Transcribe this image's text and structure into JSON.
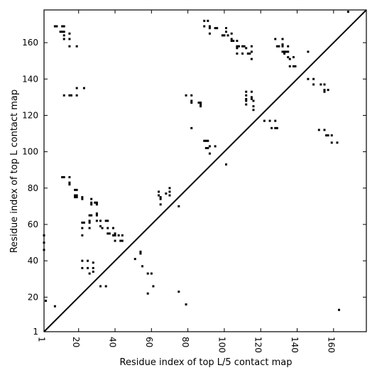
{
  "chart_data": {
    "type": "scatter",
    "title": "",
    "xlabel": "Residue index of top L/5 contact map",
    "ylabel": "Residue index of top L contact map",
    "xlim": [
      1,
      178
    ],
    "ylim": [
      1,
      178
    ],
    "x_ticks": [
      1,
      20,
      40,
      60,
      80,
      100,
      120,
      140,
      160
    ],
    "y_ticks": [
      1,
      20,
      40,
      60,
      80,
      100,
      120,
      140,
      160
    ],
    "diagonal": true,
    "grid": false,
    "legend": "none",
    "marker_color": "#000000",
    "series": [
      {
        "values": [
          [
            7,
            169
          ],
          [
            8,
            169
          ],
          [
            11,
            169
          ],
          [
            12,
            169
          ],
          [
            10,
            166
          ],
          [
            11,
            166
          ],
          [
            12,
            166
          ],
          [
            12,
            164
          ],
          [
            12,
            162
          ],
          [
            15,
            165
          ],
          [
            15,
            162
          ],
          [
            15,
            158
          ],
          [
            19,
            158
          ],
          [
            12,
            131
          ],
          [
            15,
            131
          ],
          [
            16,
            131
          ],
          [
            19,
            131
          ],
          [
            19,
            135
          ],
          [
            23,
            135
          ],
          [
            11,
            86
          ],
          [
            12,
            86
          ],
          [
            15,
            86
          ],
          [
            15,
            83
          ],
          [
            15,
            82
          ],
          [
            18,
            79
          ],
          [
            19,
            79
          ],
          [
            18,
            76
          ],
          [
            19,
            76
          ],
          [
            18,
            75
          ],
          [
            19,
            75
          ],
          [
            22,
            75
          ],
          [
            22,
            74
          ],
          [
            22,
            61
          ],
          [
            23,
            61
          ],
          [
            22,
            58
          ],
          [
            22,
            54
          ],
          [
            26,
            65
          ],
          [
            27,
            65
          ],
          [
            26,
            62
          ],
          [
            26,
            61
          ],
          [
            26,
            58
          ],
          [
            27,
            74
          ],
          [
            27,
            72
          ],
          [
            27,
            71
          ],
          [
            29,
            72
          ],
          [
            30,
            72
          ],
          [
            30,
            71
          ],
          [
            30,
            66
          ],
          [
            30,
            65
          ],
          [
            30,
            62
          ],
          [
            32,
            62
          ],
          [
            32,
            59
          ],
          [
            33,
            58
          ],
          [
            35,
            62
          ],
          [
            36,
            62
          ],
          [
            36,
            58
          ],
          [
            36,
            55
          ],
          [
            37,
            55
          ],
          [
            39,
            58
          ],
          [
            40,
            55
          ],
          [
            40,
            54
          ],
          [
            39,
            54
          ],
          [
            42,
            54
          ],
          [
            44,
            54
          ],
          [
            40,
            51
          ],
          [
            43,
            51
          ],
          [
            44,
            51
          ],
          [
            1,
            54
          ],
          [
            1,
            50
          ],
          [
            1,
            46
          ],
          [
            2,
            18
          ],
          [
            7,
            15
          ],
          [
            22,
            40
          ],
          [
            25,
            40
          ],
          [
            28,
            39
          ],
          [
            22,
            36
          ],
          [
            25,
            36
          ],
          [
            28,
            36
          ],
          [
            26,
            33
          ],
          [
            28,
            34
          ],
          [
            32,
            26
          ],
          [
            35,
            26
          ],
          [
            51,
            41
          ],
          [
            54,
            45
          ],
          [
            54,
            44
          ],
          [
            55,
            37
          ],
          [
            58,
            33
          ],
          [
            60,
            33
          ],
          [
            58,
            22
          ],
          [
            61,
            26
          ],
          [
            64,
            78
          ],
          [
            64,
            76
          ],
          [
            65,
            75
          ],
          [
            65,
            74
          ],
          [
            65,
            71
          ],
          [
            68,
            77
          ],
          [
            70,
            78
          ],
          [
            70,
            76
          ],
          [
            70,
            80
          ],
          [
            75,
            70
          ],
          [
            75,
            23
          ],
          [
            79,
            16
          ],
          [
            79,
            131
          ],
          [
            82,
            131
          ],
          [
            82,
            128
          ],
          [
            82,
            127
          ],
          [
            86,
            127
          ],
          [
            87,
            127
          ],
          [
            87,
            126
          ],
          [
            87,
            125
          ],
          [
            82,
            113
          ],
          [
            89,
            172
          ],
          [
            91,
            172
          ],
          [
            92,
            169
          ],
          [
            89,
            169
          ],
          [
            92,
            168
          ],
          [
            92,
            165
          ],
          [
            95,
            168
          ],
          [
            96,
            168
          ],
          [
            99,
            164
          ],
          [
            100,
            164
          ],
          [
            101,
            166
          ],
          [
            101,
            168
          ],
          [
            102,
            164
          ],
          [
            104,
            165
          ],
          [
            104,
            162
          ],
          [
            104,
            161
          ],
          [
            105,
            161
          ],
          [
            107,
            161
          ],
          [
            107,
            158
          ],
          [
            108,
            158
          ],
          [
            107,
            157
          ],
          [
            107,
            154
          ],
          [
            110,
            158
          ],
          [
            110,
            154
          ],
          [
            111,
            158
          ],
          [
            112,
            157
          ],
          [
            113,
            154
          ],
          [
            114,
            154
          ],
          [
            115,
            158
          ],
          [
            115,
            155
          ],
          [
            115,
            151
          ],
          [
            112,
            133
          ],
          [
            112,
            131
          ],
          [
            112,
            129
          ],
          [
            112,
            128
          ],
          [
            112,
            126
          ],
          [
            115,
            133
          ],
          [
            115,
            130
          ],
          [
            115,
            129
          ],
          [
            116,
            128
          ],
          [
            116,
            125
          ],
          [
            116,
            123
          ],
          [
            89,
            106
          ],
          [
            90,
            106
          ],
          [
            91,
            106
          ],
          [
            90,
            102
          ],
          [
            91,
            102
          ],
          [
            92,
            103
          ],
          [
            92,
            99
          ],
          [
            95,
            103
          ],
          [
            101,
            93
          ],
          [
            122,
            117
          ],
          [
            125,
            117
          ],
          [
            128,
            117
          ],
          [
            126,
            113
          ],
          [
            128,
            113
          ],
          [
            129,
            113
          ],
          [
            128,
            162
          ],
          [
            129,
            158
          ],
          [
            130,
            158
          ],
          [
            132,
            162
          ],
          [
            132,
            159
          ],
          [
            132,
            158
          ],
          [
            132,
            155
          ],
          [
            133,
            155
          ],
          [
            133,
            154
          ],
          [
            134,
            155
          ],
          [
            135,
            158
          ],
          [
            135,
            155
          ],
          [
            135,
            152
          ],
          [
            136,
            151
          ],
          [
            138,
            152
          ],
          [
            138,
            147
          ],
          [
            139,
            147
          ],
          [
            136,
            147
          ],
          [
            146,
            155
          ],
          [
            146,
            140
          ],
          [
            149,
            140
          ],
          [
            149,
            137
          ],
          [
            153,
            137
          ],
          [
            155,
            134
          ],
          [
            155,
            133
          ],
          [
            155,
            137
          ],
          [
            157,
            134
          ],
          [
            152,
            112
          ],
          [
            155,
            112
          ],
          [
            156,
            109
          ],
          [
            157,
            109
          ],
          [
            159,
            109
          ],
          [
            159,
            105
          ],
          [
            162,
            105
          ],
          [
            163,
            13
          ],
          [
            168,
            177
          ]
        ]
      }
    ]
  }
}
